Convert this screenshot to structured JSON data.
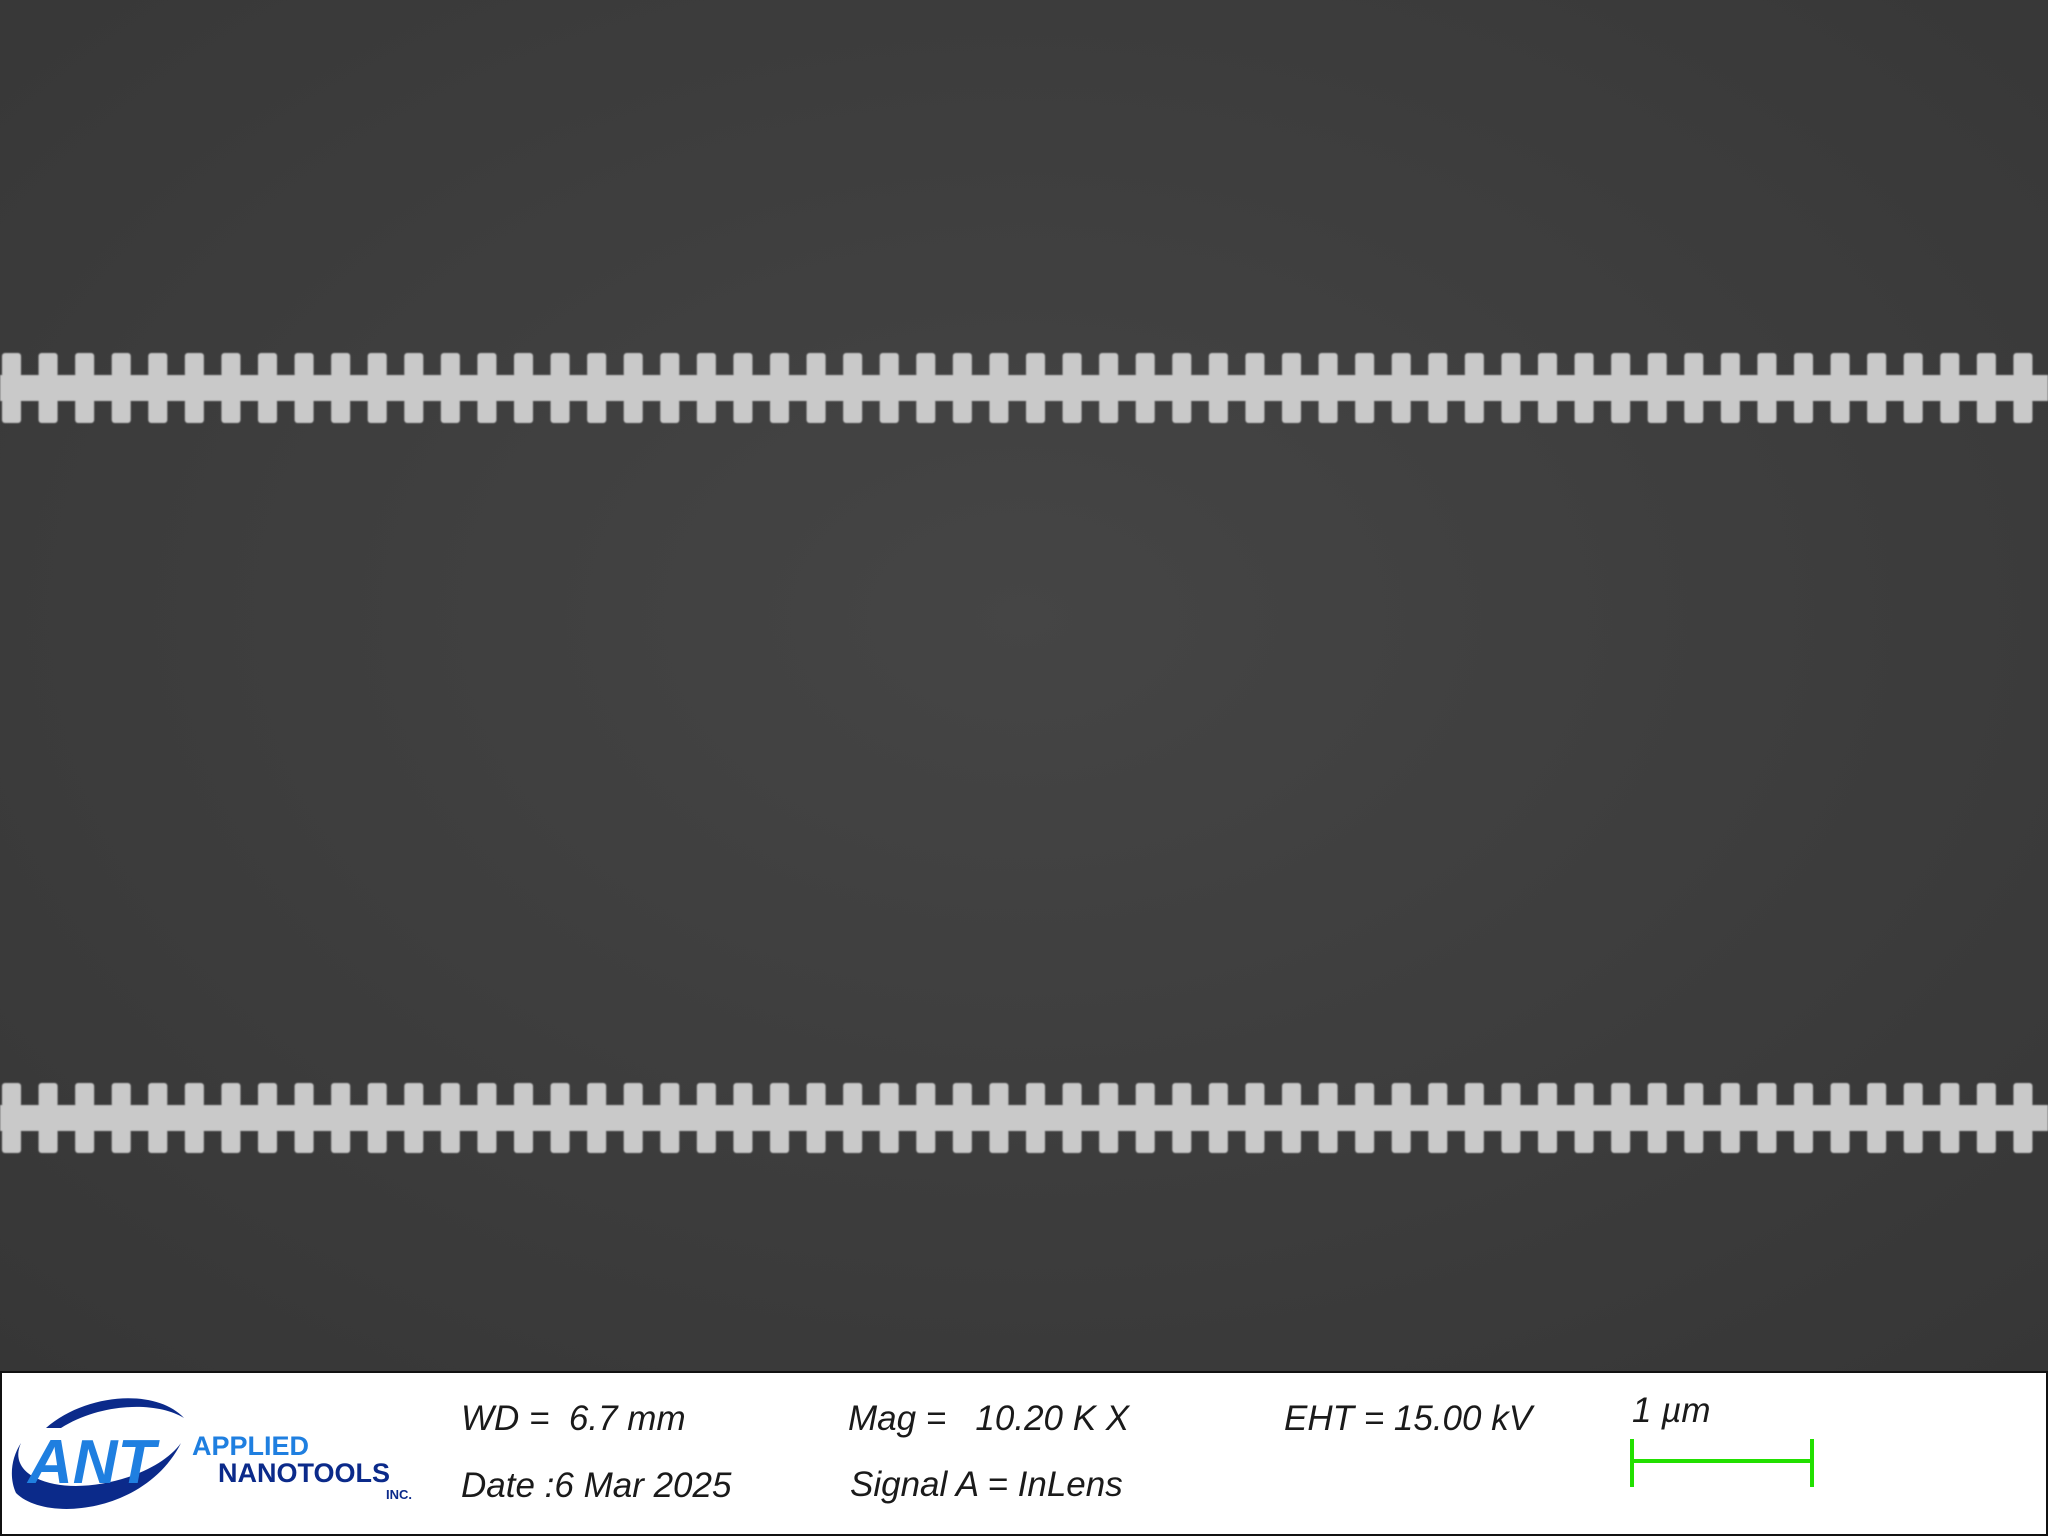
{
  "info_bar": {
    "logo": {
      "mark": "ANT",
      "line1": "APPLIED",
      "line2": "NANOTOOLS",
      "line3": "INC.",
      "colors": {
        "primary": "#1f7fe0",
        "dark": "#0b2a8a"
      }
    },
    "wd": "WD =  6.7 mm",
    "date": "Date :6 Mar 2025",
    "mag": "Mag =   10.20 K X",
    "signal": "Signal A = InLens",
    "eht": "EHT = 15.00 kV",
    "scale_label": "1 µm",
    "scale_color": "#22e000"
  },
  "image": {
    "background_color": "#3a3a3a",
    "waveguide_color": "#c9c9c9",
    "waveguide_count": 2,
    "teeth_per_side": 56
  }
}
